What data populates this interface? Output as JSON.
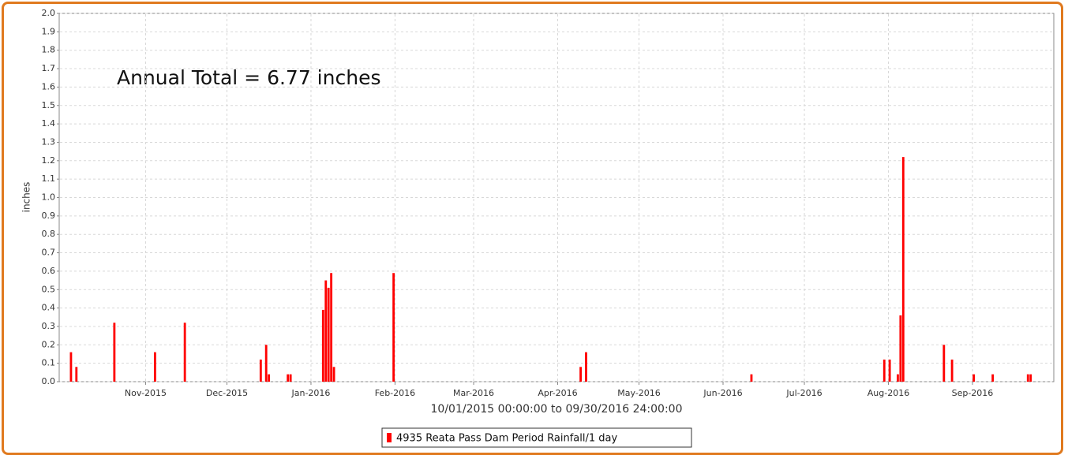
{
  "chart_data": {
    "type": "bar",
    "annotation": "Annual Total = 6.77 inches",
    "x_label": "10/01/2015 00:00:00 to 09/30/2016 24:00:00",
    "y_label": "inches",
    "grid": true,
    "xlim": [
      "2015-10-01",
      "2016-10-01"
    ],
    "xticks": [
      {
        "value": "2015-11-01",
        "label": "Nov-2015"
      },
      {
        "value": "2015-12-01",
        "label": "Dec-2015"
      },
      {
        "value": "2016-01-01",
        "label": "Jan-2016"
      },
      {
        "value": "2016-02-01",
        "label": "Feb-2016"
      },
      {
        "value": "2016-03-01",
        "label": "Mar-2016"
      },
      {
        "value": "2016-04-01",
        "label": "Apr-2016"
      },
      {
        "value": "2016-05-01",
        "label": "May-2016"
      },
      {
        "value": "2016-06-01",
        "label": "Jun-2016"
      },
      {
        "value": "2016-07-01",
        "label": "Jul-2016"
      },
      {
        "value": "2016-08-01",
        "label": "Aug-2016"
      },
      {
        "value": "2016-09-01",
        "label": "Sep-2016"
      }
    ],
    "ylim": [
      0,
      2
    ],
    "yticks": [
      {
        "value": 0,
        "label": "0.0"
      },
      0.1,
      0.2,
      0.3,
      0.4,
      0.5,
      0.6,
      0.7,
      0.8,
      0.9,
      {
        "value": 1,
        "label": "1.0"
      },
      1.1,
      1.2,
      1.3,
      1.4,
      1.5,
      1.6,
      1.7,
      1.8,
      1.9,
      {
        "value": 2,
        "label": "2.0"
      }
    ],
    "series": [
      {
        "name": "4935 Reata Pass Dam Period Rainfall/1 day",
        "color": "#ff0000",
        "x": [
          "2015-10-04",
          "2015-10-06",
          "2015-10-20",
          "2015-11-04",
          "2015-11-15",
          "2015-12-13",
          "2015-12-15",
          "2015-12-16",
          "2015-12-23",
          "2015-12-24",
          "2016-01-05",
          "2016-01-06",
          "2016-01-07",
          "2016-01-08",
          "2016-01-09",
          "2016-01-31",
          "2016-04-09",
          "2016-04-11",
          "2016-06-11",
          "2016-07-30",
          "2016-08-01",
          "2016-08-04",
          "2016-08-05",
          "2016-08-06",
          "2016-08-21",
          "2016-08-24",
          "2016-09-01",
          "2016-09-08",
          "2016-09-21",
          "2016-09-22"
        ],
        "values": [
          0.16,
          0.08,
          0.32,
          0.16,
          0.32,
          0.12,
          0.2,
          0.04,
          0.04,
          0.04,
          0.39,
          0.55,
          0.51,
          0.59,
          0.08,
          0.59,
          0.08,
          0.16,
          0.04,
          0.12,
          0.12,
          0.04,
          0.36,
          1.22,
          0.2,
          0.12,
          0.04,
          0.04,
          0.04,
          0.04
        ]
      }
    ]
  }
}
